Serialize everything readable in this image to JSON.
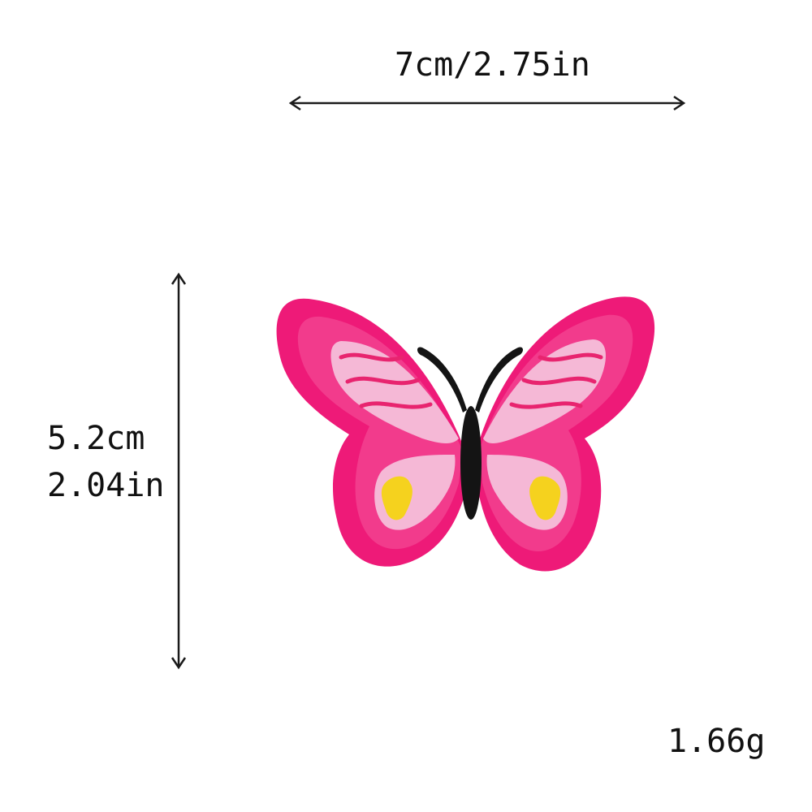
{
  "dimensions": {
    "width_label": "7cm/2.75in",
    "height_cm_label": "5.2cm",
    "height_in_label": "2.04in",
    "weight_label": "1.66g"
  },
  "product": {
    "item": "butterfly-patch",
    "colors": {
      "border": "#ee1a78",
      "wing_fill": "#f23b8c",
      "inner_pink": "#f5b8d6",
      "stripe": "#e8246f",
      "yellow": "#f5d21e",
      "body": "#141414",
      "arrow": "#1a1a1a"
    }
  }
}
